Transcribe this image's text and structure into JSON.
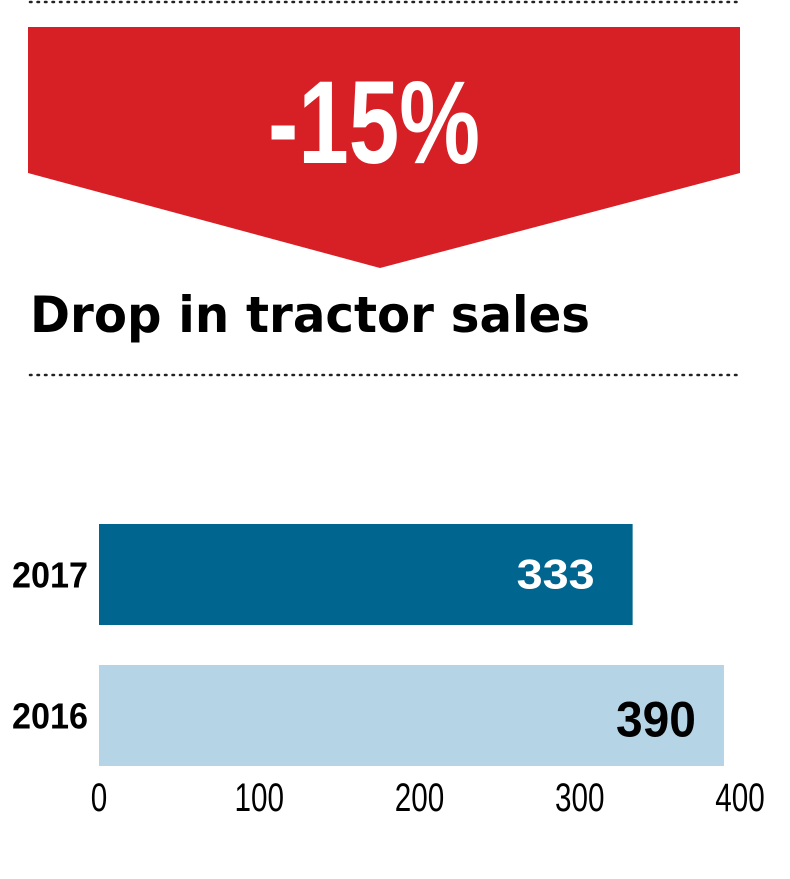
{
  "headline": {
    "change": "-15%",
    "title": "Drop in tractor sales"
  },
  "colors": {
    "arrow": "#d71f26",
    "bar_2017": "#00668f",
    "bar_2016": "#b5d5e6",
    "text": "#000000"
  },
  "chart_data": {
    "type": "bar",
    "orientation": "horizontal",
    "title": "Drop in tractor sales",
    "categories": [
      "2017",
      "2016"
    ],
    "values": [
      333,
      390
    ],
    "data_labels": [
      "333",
      "390"
    ],
    "xlim": [
      0,
      400
    ],
    "xticks": [
      0,
      100,
      200,
      300,
      400
    ],
    "xtick_labels": [
      "0",
      "100",
      "200",
      "300",
      "400"
    ],
    "grid": false,
    "xlabel": "",
    "ylabel": ""
  }
}
